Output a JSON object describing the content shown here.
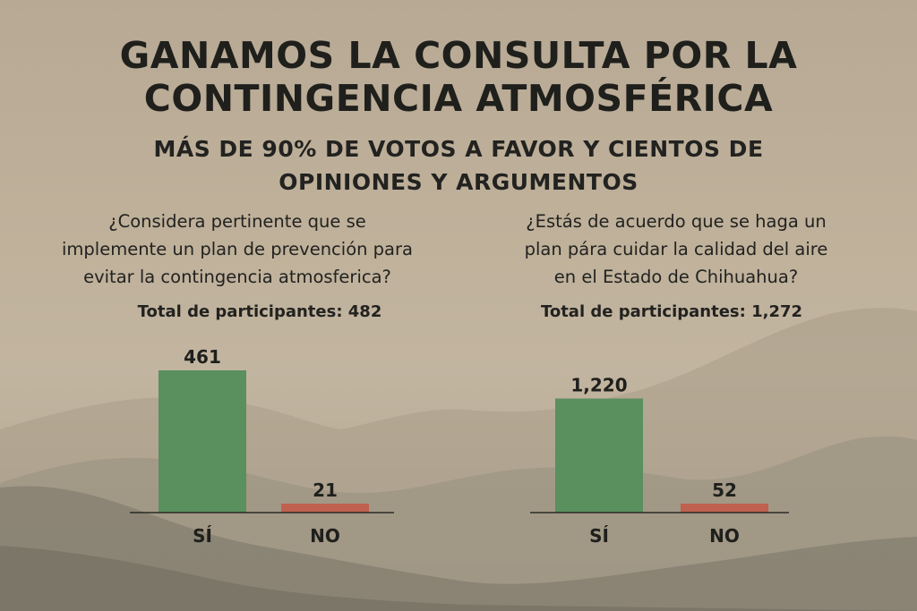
{
  "title_line1": "GANAMOS LA CONSULTA POR LA",
  "title_line2": "CONTINGENCIA ATMOSFÉRICA",
  "subtitle_line1": "MÁS DE 90% DE VOTOS A FAVOR Y CIENTOS DE",
  "subtitle_line2": "OPINIONES Y ARGUMENTOS",
  "colors": {
    "yes": "#5a8f5e",
    "no": "#c0614f",
    "text": "#1f1f1c"
  },
  "chart_data": [
    {
      "type": "bar",
      "question": "¿Considera pertinente que se\nimplemente un plan de prevención para\nevitar la contingencia atmosferica?",
      "total_label": "Total de participantes: 482",
      "categories": [
        "SÍ",
        "NO"
      ],
      "values": [
        461,
        21
      ],
      "value_labels": [
        "461",
        "21"
      ],
      "ylim": [
        0,
        461
      ]
    },
    {
      "type": "bar",
      "question": "¿Estás de acuerdo que se haga un\nplan pára cuidar la calidad del aire\nen el Estado de Chihuahua?",
      "total_label": "Total de participantes: 1,272",
      "categories": [
        "SÍ",
        "NO"
      ],
      "values": [
        1220,
        52
      ],
      "value_labels": [
        "1,220",
        "52"
      ],
      "ylim": [
        0,
        1330
      ]
    }
  ]
}
